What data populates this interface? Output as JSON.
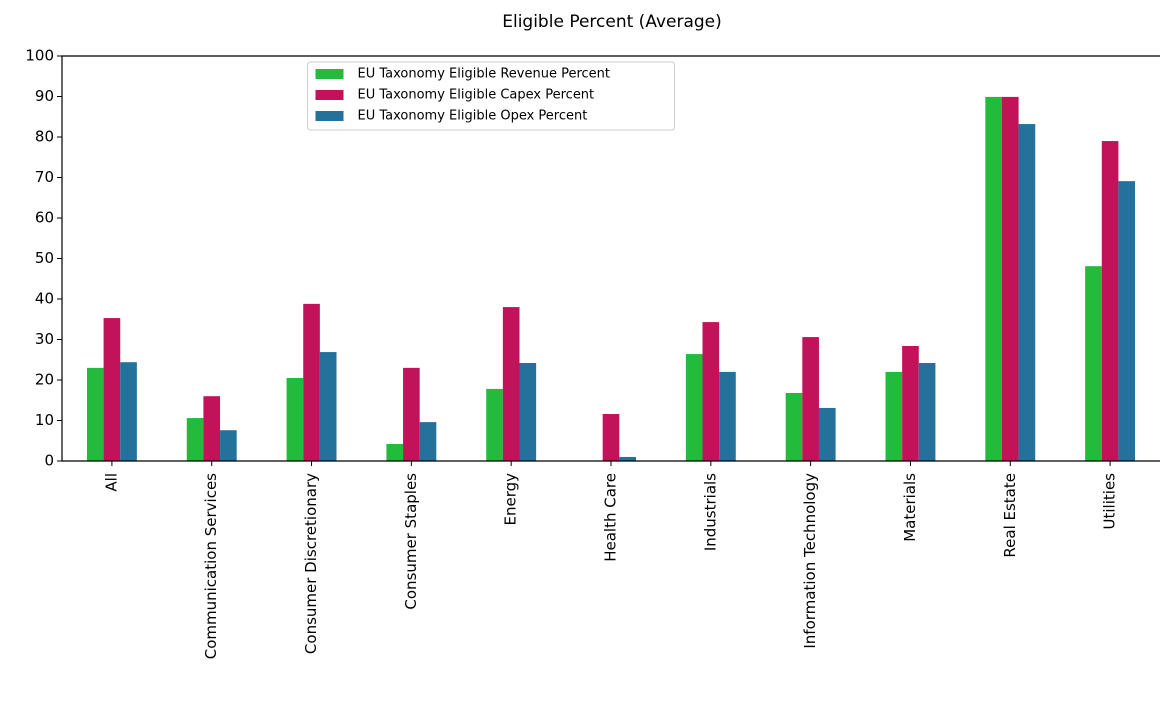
{
  "chart_data": {
    "type": "bar",
    "title": "Eligible Percent (Average)",
    "categories": [
      "All",
      "Communication Services",
      "Consumer Discretionary",
      "Consumer Staples",
      "Energy",
      "Health Care",
      "Industrials",
      "Information Technology",
      "Materials",
      "Real Estate",
      "Utilities"
    ],
    "series": [
      {
        "name": "EU Taxonomy Eligible Revenue Percent",
        "color": "#22bb3c",
        "values": [
          23,
          10.6,
          20.5,
          4.2,
          17.8,
          0,
          26.4,
          16.8,
          22,
          89.9,
          48.1
        ]
      },
      {
        "name": "EU Taxonomy Eligible Capex Percent",
        "color": "#c2125a",
        "values": [
          35.3,
          16,
          38.8,
          23,
          38,
          11.6,
          34.3,
          30.6,
          28.4,
          89.9,
          79
        ]
      },
      {
        "name": "EU Taxonomy Eligible Opex Percent",
        "color": "#24719c",
        "values": [
          24.4,
          7.6,
          26.9,
          9.6,
          24.2,
          1,
          22,
          13.1,
          24.2,
          83.2,
          69.1
        ]
      }
    ],
    "ylim": [
      0,
      100
    ],
    "yticks": [
      0,
      10,
      20,
      30,
      40,
      50,
      60,
      70,
      80,
      90,
      100
    ],
    "grid": false,
    "legend": "upper center"
  }
}
